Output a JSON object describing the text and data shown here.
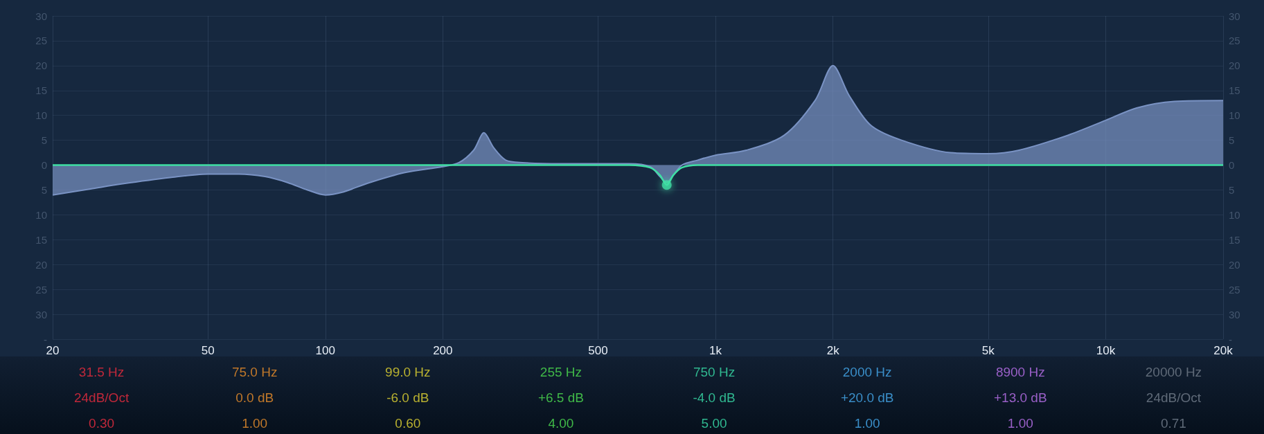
{
  "chart_data": [
    {
      "type": "area",
      "log": "x",
      "grid": true,
      "xlim": [
        20,
        20000
      ],
      "xticks": [
        20,
        50,
        100,
        200,
        500,
        {
          "value": 1000,
          "label": "1k"
        },
        {
          "value": 2000,
          "label": "2k"
        },
        {
          "value": 5000,
          "label": "5k"
        },
        {
          "value": 10000,
          "label": "10k"
        },
        {
          "value": 20000,
          "label": "20k"
        }
      ],
      "ylim": [
        -35,
        30
      ],
      "yticks": [
        {
          "value": -35,
          "label": "-"
        },
        {
          "value": -30,
          "label": "30"
        },
        {
          "value": -25,
          "label": "25"
        },
        {
          "value": -20,
          "label": "20"
        },
        {
          "value": -15,
          "label": "15"
        },
        {
          "value": -10,
          "label": "10"
        },
        {
          "value": -5,
          "label": "5"
        },
        0,
        5,
        10,
        15,
        20,
        25,
        30
      ],
      "y2lim": [
        -35,
        30
      ],
      "y2ticks": [
        {
          "value": -35,
          "label": "-"
        },
        {
          "value": -30,
          "label": "30"
        },
        {
          "value": -25,
          "label": "25"
        },
        {
          "value": -20,
          "label": "20"
        },
        {
          "value": -15,
          "label": "15"
        },
        {
          "value": -10,
          "label": "10"
        },
        {
          "value": -5,
          "label": "5"
        },
        0,
        5,
        10,
        15,
        20,
        25,
        30
      ],
      "series": [
        {
          "color": "#7a93c4",
          "x": [
            20,
            25,
            30,
            40,
            50,
            60,
            70,
            80,
            90,
            100,
            110,
            130,
            160,
            200,
            220,
            240,
            255,
            270,
            290,
            320,
            400,
            500,
            600,
            680,
            720,
            750,
            780,
            820,
            900,
            1000,
            1200,
            1500,
            1800,
            2000,
            2200,
            2500,
            3000,
            4000,
            5000,
            6000,
            8000,
            10000,
            12000,
            15000,
            20000
          ],
          "values": [
            -6,
            -4.8,
            -3.8,
            -2.5,
            -1.8,
            -1.8,
            -2.3,
            -3.5,
            -5,
            -6,
            -5.5,
            -3.5,
            -1.5,
            -0.3,
            0.5,
            3,
            6.5,
            3.5,
            1,
            0.5,
            0.3,
            0.3,
            0.3,
            -0.3,
            -2.3,
            -3.5,
            -2,
            0,
            1,
            2,
            3,
            6,
            13,
            20,
            14,
            8,
            5,
            2.5,
            2.3,
            3,
            6,
            9,
            11.5,
            12.8,
            13
          ]
        },
        {
          "type": "line",
          "color": "#3fe0a4",
          "x": [
            20,
            600,
            680,
            720,
            750,
            780,
            820,
            900,
            20000
          ],
          "values": [
            0,
            0,
            -0.5,
            -2,
            -4,
            -2,
            -0.5,
            0,
            0
          ]
        },
        {
          "type": "scatter",
          "color": "#3fe0a4",
          "marker": "circle",
          "x": [
            750
          ],
          "values": [
            -4
          ]
        }
      ]
    },
    {
      "type": "other",
      "annotations": [
        "31.5 Hz",
        "24dB/Oct",
        "0.30",
        "75.0 Hz",
        "0.0 dB",
        "1.00",
        "99.0 Hz",
        "-6.0 dB",
        "0.60",
        "255 Hz",
        "+6.5 dB",
        "4.00",
        "750 Hz",
        "-4.0 dB",
        "5.00",
        "2000 Hz",
        "+20.0 dB",
        "1.00",
        "8900 Hz",
        "+13.0 dB",
        "1.00",
        "20000 Hz",
        "24dB/Oct",
        "0.71"
      ]
    }
  ]
}
